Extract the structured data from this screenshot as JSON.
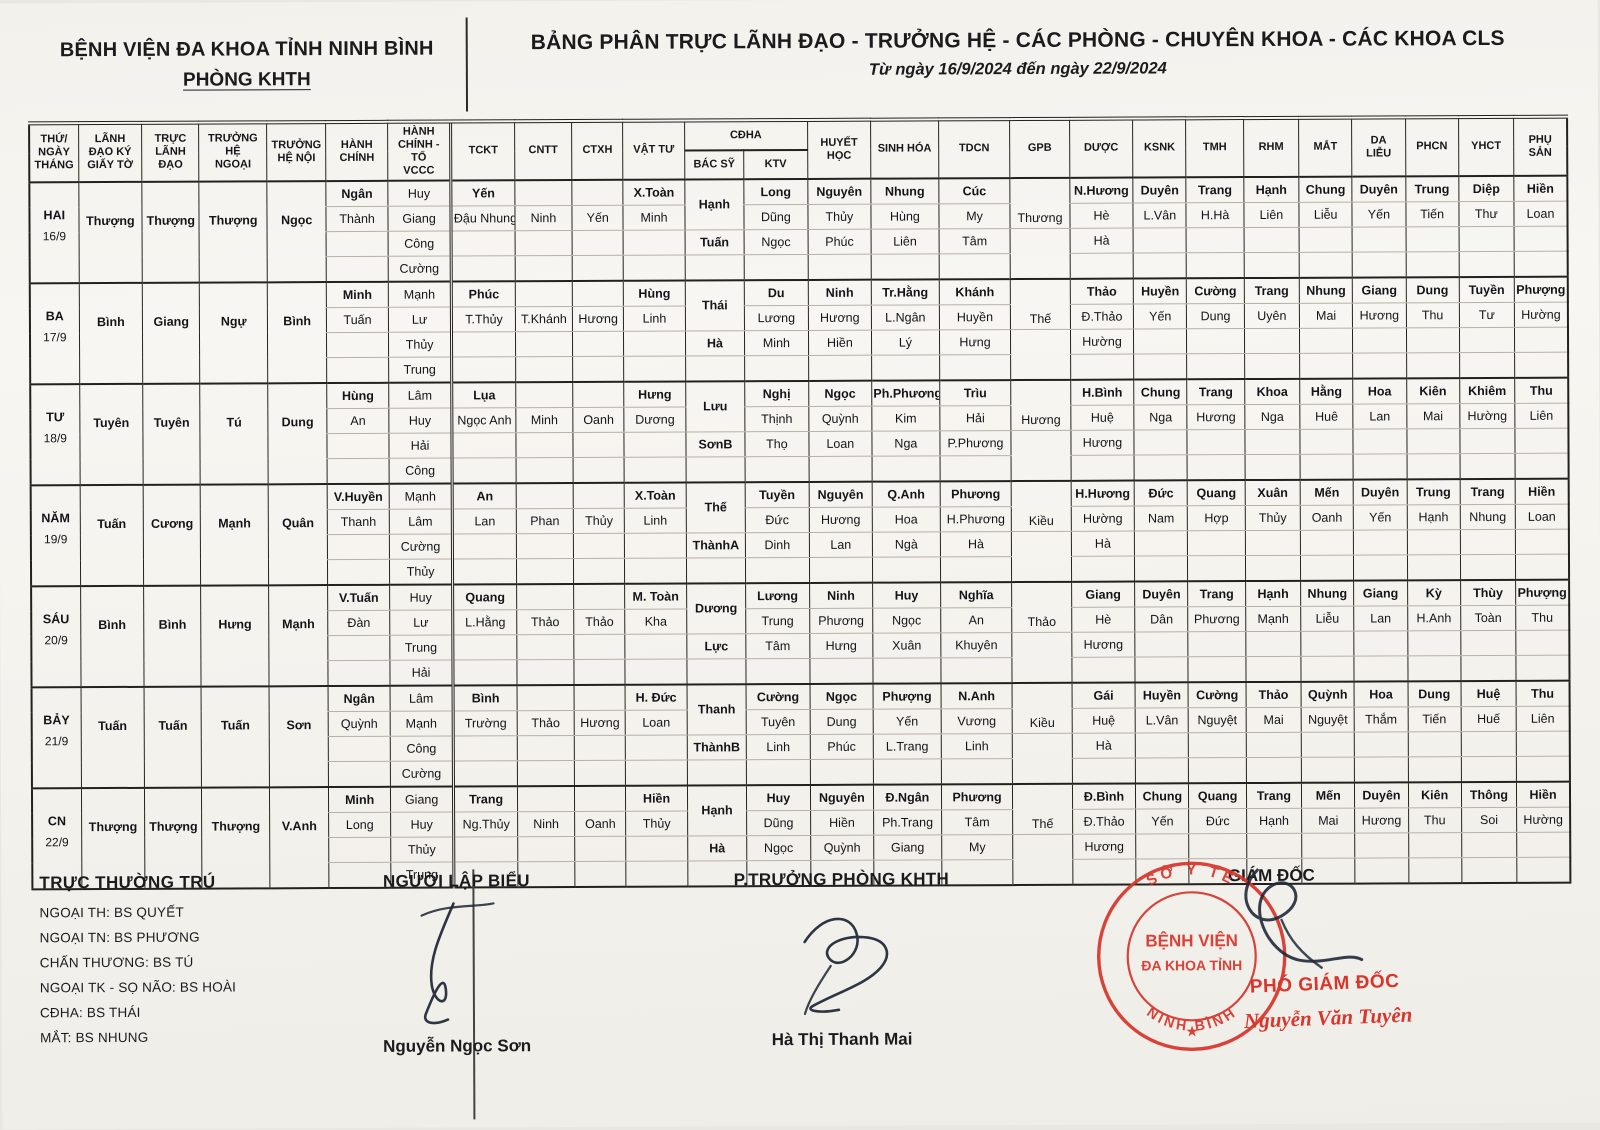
{
  "header": {
    "org_line1": "BỆNH VIỆN ĐA KHOA TỈNH NINH BÌNH",
    "org_line2": "PHÒNG KHTH",
    "title": "BẢNG PHÂN TRỰC LÃNH ĐẠO - TRƯỞNG HỆ - CÁC PHÒNG - CHUYÊN KHOA - CÁC KHOA CLS",
    "subtitle": "Từ ngày 16/9/2024 đến ngày 22/9/2024"
  },
  "table": {
    "columns": [
      {
        "key": "day",
        "label": "THỨ/\nNGÀY\nTHÁNG",
        "type": "day"
      },
      {
        "key": "ky",
        "label": "LÃNH\nĐẠO KÝ\nGIẤY TỜ",
        "type": "single"
      },
      {
        "key": "truc",
        "label": "TRỰC\nLÃNH\nĐẠO",
        "type": "single"
      },
      {
        "key": "ngoai",
        "label": "TRƯỞNG\nHỆ\nNGOẠI",
        "type": "single"
      },
      {
        "key": "noi",
        "label": "TRƯỞNG\nHỆ NỘI",
        "type": "single"
      },
      {
        "key": "hc",
        "label": "HÀNH\nCHÍNH",
        "type": "two"
      },
      {
        "key": "vccc",
        "label": "HÀNH\nCHÍNH -\nTỔ\nVCCC",
        "type": "four"
      },
      {
        "key": "tckt",
        "label": "TCKT",
        "type": "two"
      },
      {
        "key": "cntt",
        "label": "CNTT",
        "type": "mid"
      },
      {
        "key": "ctxh",
        "label": "CTXH",
        "type": "mid"
      },
      {
        "key": "vattu",
        "label": "VẬT TƯ",
        "type": "two"
      },
      {
        "key": "cdha_bs",
        "label": "BÁC SỸ",
        "type": "bs",
        "group": "CĐHA"
      },
      {
        "key": "cdha_ktv",
        "label": "KTV",
        "type": "three",
        "group": "CĐHA"
      },
      {
        "key": "huyet",
        "label": "HUYẾT\nHỌC",
        "type": "three"
      },
      {
        "key": "sinhhoa",
        "label": "SINH HÓA",
        "type": "three"
      },
      {
        "key": "tdcn",
        "label": "TDCN",
        "type": "three"
      },
      {
        "key": "gpb",
        "label": "GPB",
        "type": "gpb"
      },
      {
        "key": "duoc",
        "label": "DƯỢC",
        "type": "three"
      },
      {
        "key": "ksnk",
        "label": "KSNK",
        "type": "two"
      },
      {
        "key": "tmh",
        "label": "TMH",
        "type": "two"
      },
      {
        "key": "rhm",
        "label": "RHM",
        "type": "two"
      },
      {
        "key": "mat",
        "label": "MẮT",
        "type": "two"
      },
      {
        "key": "dalieu",
        "label": "DA\nLIỄU",
        "type": "two"
      },
      {
        "key": "phcn",
        "label": "PHCN",
        "type": "two"
      },
      {
        "key": "yhct",
        "label": "YHCT",
        "type": "two"
      },
      {
        "key": "phusan",
        "label": "PHỤ\nSẢN",
        "type": "two"
      }
    ],
    "days": [
      {
        "day": "HAI",
        "date": "16/9",
        "ky": "Thượng",
        "truc": "Thượng",
        "ngoai": "Thượng",
        "noi": "Ngọc",
        "hc": [
          "Ngân",
          "Thành"
        ],
        "vccc": [
          "Huy",
          "Giang",
          "Công",
          "Cường"
        ],
        "tckt": [
          "Yến",
          "Đậu Nhung"
        ],
        "cntt": "Ninh",
        "ctxh": "Yến",
        "vattu": [
          "X.Toàn",
          "Minh"
        ],
        "cdha_bs": [
          "Hạnh",
          "Tuấn"
        ],
        "cdha_ktv": [
          "Long",
          "Dũng",
          "Ngọc"
        ],
        "huyet": [
          "Nguyên",
          "Thủy",
          "Phúc"
        ],
        "sinhhoa": [
          "Nhung",
          "Hùng",
          "Liên"
        ],
        "tdcn": [
          "Cúc",
          "My",
          "Tâm"
        ],
        "gpb": "Thương",
        "duoc": [
          "N.Hương",
          "Hè",
          "Hà"
        ],
        "ksnk": [
          "Duyên",
          "L.Vân"
        ],
        "tmh": [
          "Trang",
          "H.Hà"
        ],
        "rhm": [
          "Hạnh",
          "Liên"
        ],
        "mat": [
          "Chung",
          "Liễu"
        ],
        "dalieu": [
          "Duyên",
          "Yến"
        ],
        "phcn": [
          "Trung",
          "Tiến"
        ],
        "yhct": [
          "Diệp",
          "Thư"
        ],
        "phusan": [
          "Hiền",
          "Loan"
        ]
      },
      {
        "day": "BA",
        "date": "17/9",
        "ky": "Bình",
        "truc": "Giang",
        "ngoai": "Ngự",
        "noi": "Bình",
        "hc": [
          "Minh",
          "Tuấn"
        ],
        "vccc": [
          "Mạnh",
          "Lư",
          "Thủy",
          "Trung"
        ],
        "tckt": [
          "Phúc",
          "T.Thủy"
        ],
        "cntt": "T.Khánh",
        "ctxh": "Hương",
        "vattu": [
          "Hùng",
          "Linh"
        ],
        "cdha_bs": [
          "Thái",
          "Hà"
        ],
        "cdha_ktv": [
          "Du",
          "Lương",
          "Minh"
        ],
        "huyet": [
          "Ninh",
          "Hương",
          "Hiền"
        ],
        "sinhhoa": [
          "Tr.Hằng",
          "L.Ngân",
          "Lý"
        ],
        "tdcn": [
          "Khánh",
          "Huyền",
          "Hưng"
        ],
        "gpb": "Thế",
        "duoc": [
          "Thảo",
          "Đ.Thảo",
          "Hường"
        ],
        "ksnk": [
          "Huyền",
          "Yến"
        ],
        "tmh": [
          "Cường",
          "Dung"
        ],
        "rhm": [
          "Trang",
          "Uyên"
        ],
        "mat": [
          "Nhung",
          "Mai"
        ],
        "dalieu": [
          "Giang",
          "Hương"
        ],
        "phcn": [
          "Dung",
          "Thu"
        ],
        "yhct": [
          "Tuyền",
          "Tư"
        ],
        "phusan": [
          "Phượng",
          "Hường"
        ]
      },
      {
        "day": "TƯ",
        "date": "18/9",
        "ky": "Tuyên",
        "truc": "Tuyên",
        "ngoai": "Tú",
        "noi": "Dung",
        "hc": [
          "Hùng",
          "An"
        ],
        "vccc": [
          "Lâm",
          "Huy",
          "Hải",
          "Công"
        ],
        "tckt": [
          "Lụa",
          "Ngọc Anh"
        ],
        "cntt": "Minh",
        "ctxh": "Oanh",
        "vattu": [
          "Hưng",
          "Dương"
        ],
        "cdha_bs": [
          "Lưu",
          "SơnB"
        ],
        "cdha_ktv": [
          "Nghị",
          "Thịnh",
          "Thọ"
        ],
        "huyet": [
          "Ngọc",
          "Quỳnh",
          "Loan"
        ],
        "sinhhoa": [
          "Ph.Phương",
          "Kim",
          "Nga"
        ],
        "tdcn": [
          "Trìu",
          "Hải",
          "P.Phương"
        ],
        "gpb": "Hương",
        "duoc": [
          "H.Bình",
          "Huệ",
          "Hương"
        ],
        "ksnk": [
          "Chung",
          "Nga"
        ],
        "tmh": [
          "Trang",
          "Hương"
        ],
        "rhm": [
          "Khoa",
          "Nga"
        ],
        "mat": [
          "Hằng",
          "Huê"
        ],
        "dalieu": [
          "Hoa",
          "Lan"
        ],
        "phcn": [
          "Kiên",
          "Mai"
        ],
        "yhct": [
          "Khiêm",
          "Hường"
        ],
        "phusan": [
          "Thu",
          "Liên"
        ]
      },
      {
        "day": "NĂM",
        "date": "19/9",
        "ky": "Tuấn",
        "truc": "Cương",
        "ngoai": "Mạnh",
        "noi": "Quân",
        "hc": [
          "V.Huyền",
          "Thanh"
        ],
        "vccc": [
          "Mạnh",
          "Lâm",
          "Cường",
          "Thủy"
        ],
        "tckt": [
          "An",
          "Lan"
        ],
        "cntt": "Phan",
        "ctxh": "Thủy",
        "vattu": [
          "X.Toàn",
          "Linh"
        ],
        "cdha_bs": [
          "Thế",
          "ThànhA"
        ],
        "cdha_ktv": [
          "Tuyền",
          "Đức",
          "Dinh"
        ],
        "huyet": [
          "Nguyên",
          "Hương",
          "Lan"
        ],
        "sinhhoa": [
          "Q.Anh",
          "Hoa",
          "Ngà"
        ],
        "tdcn": [
          "Phương",
          "H.Phương",
          "Hà"
        ],
        "gpb": "Kiều",
        "duoc": [
          "H.Hương",
          "Hường",
          "Hà"
        ],
        "ksnk": [
          "Đức",
          "Nam"
        ],
        "tmh": [
          "Quang",
          "Hợp"
        ],
        "rhm": [
          "Xuân",
          "Thủy"
        ],
        "mat": [
          "Mến",
          "Oanh"
        ],
        "dalieu": [
          "Duyên",
          "Yến"
        ],
        "phcn": [
          "Trung",
          "Hạnh"
        ],
        "yhct": [
          "Trang",
          "Nhung"
        ],
        "phusan": [
          "Hiền",
          "Loan"
        ]
      },
      {
        "day": "SÁU",
        "date": "20/9",
        "ky": "Bình",
        "truc": "Bình",
        "ngoai": "Hưng",
        "noi": "Mạnh",
        "hc": [
          "V.Tuấn",
          "Đàn"
        ],
        "vccc": [
          "Huy",
          "Lư",
          "Trung",
          "Hải"
        ],
        "tckt": [
          "Quang",
          "L.Hằng"
        ],
        "cntt": "Thảo",
        "ctxh": "Thảo",
        "vattu": [
          "M. Toàn",
          "Kha"
        ],
        "cdha_bs": [
          "Dương",
          "Lực"
        ],
        "cdha_ktv": [
          "Lương",
          "Trung",
          "Tâm"
        ],
        "huyet": [
          "Ninh",
          "Phương",
          "Hưng"
        ],
        "sinhhoa": [
          "Huy",
          "Ngọc",
          "Xuân"
        ],
        "tdcn": [
          "Nghĩa",
          "An",
          "Khuyên"
        ],
        "gpb": "Thảo",
        "duoc": [
          "Giang",
          "Hè",
          "Hương"
        ],
        "ksnk": [
          "Duyên",
          "Dân"
        ],
        "tmh": [
          "Trang",
          "Phương"
        ],
        "rhm": [
          "Hạnh",
          "Mạnh"
        ],
        "mat": [
          "Nhung",
          "Liễu"
        ],
        "dalieu": [
          "Giang",
          "Lan"
        ],
        "phcn": [
          "Kỳ",
          "H.Anh"
        ],
        "yhct": [
          "Thùy",
          "Toàn"
        ],
        "phusan": [
          "Phượng",
          "Thu"
        ]
      },
      {
        "day": "BẢY",
        "date": "21/9",
        "ky": "Tuấn",
        "truc": "Tuấn",
        "ngoai": "Tuấn",
        "noi": "Sơn",
        "hc": [
          "Ngân",
          "Quỳnh"
        ],
        "vccc": [
          "Lâm",
          "Mạnh",
          "Công",
          "Cường"
        ],
        "tckt": [
          "Bình",
          "Trường"
        ],
        "cntt": "Thảo",
        "ctxh": "Hương",
        "vattu": [
          "H. Đức",
          "Loan"
        ],
        "cdha_bs": [
          "Thanh",
          "ThànhB"
        ],
        "cdha_ktv": [
          "Cường",
          "Tuyên",
          "Linh"
        ],
        "huyet": [
          "Ngọc",
          "Dung",
          "Phúc"
        ],
        "sinhhoa": [
          "Phượng",
          "Yến",
          "L.Trang"
        ],
        "tdcn": [
          "N.Anh",
          "Vương",
          "Linh"
        ],
        "gpb": "Kiều",
        "duoc": [
          "Gái",
          "Huệ",
          "Hà"
        ],
        "ksnk": [
          "Huyền",
          "L.Vân"
        ],
        "tmh": [
          "Cường",
          "Nguyệt"
        ],
        "rhm": [
          "Thảo",
          "Mai"
        ],
        "mat": [
          "Quỳnh",
          "Nguyệt"
        ],
        "dalieu": [
          "Hoa",
          "Thắm"
        ],
        "phcn": [
          "Dung",
          "Tiến"
        ],
        "yhct": [
          "Huệ",
          "Huế"
        ],
        "phusan": [
          "Thu",
          "Liên"
        ]
      },
      {
        "day": "CN",
        "date": "22/9",
        "ky": "Thượng",
        "truc": "Thượng",
        "ngoai": "Thượng",
        "noi": "V.Anh",
        "hc": [
          "Minh",
          "Long"
        ],
        "vccc": [
          "Giang",
          "Huy",
          "Thủy",
          "Trung"
        ],
        "tckt": [
          "Trang",
          "Ng.Thủy"
        ],
        "cntt": "Ninh",
        "ctxh": "Oanh",
        "vattu": [
          "Hiền",
          "Thủy"
        ],
        "cdha_bs": [
          "Hạnh",
          "Hà"
        ],
        "cdha_ktv": [
          "Huy",
          "Dũng",
          "Ngọc"
        ],
        "huyet": [
          "Nguyên",
          "Hiền",
          "Quỳnh"
        ],
        "sinhhoa": [
          "Đ.Ngân",
          "Ph.Trang",
          "Giang"
        ],
        "tdcn": [
          "Phương",
          "Tâm",
          "My"
        ],
        "gpb": "Thế",
        "duoc": [
          "Đ.Bình",
          "Đ.Thảo",
          "Hương"
        ],
        "ksnk": [
          "Chung",
          "Yến"
        ],
        "tmh": [
          "Quang",
          "Đức"
        ],
        "rhm": [
          "Trang",
          "Hạnh"
        ],
        "mat": [
          "Mến",
          "Mai"
        ],
        "dalieu": [
          "Duyên",
          "Hương"
        ],
        "phcn": [
          "Kiên",
          "Thu"
        ],
        "yhct": [
          "Thông",
          "Soi"
        ],
        "phusan": [
          "Hiền",
          "Hường"
        ]
      }
    ]
  },
  "footer": {
    "resident_title": "TRỰC THƯỜNG TRÚ",
    "resident_lines": [
      "NGOẠI TH: BS QUYẾT",
      "NGOẠI TN: BS PHƯƠNG",
      "CHẤN THƯƠNG: BS TÚ",
      "NGOẠI TK - SỌ NÃO: BS HOÀI",
      "CĐHA: BS THÁI",
      "MẮT: BS NHUNG"
    ],
    "preparer_title": "NGƯỜI LẬP BIỂU",
    "preparer_name": "Nguyễn Ngọc Sơn",
    "deputy_head_title": "P.TRƯỞNG PHÒNG KHTH",
    "deputy_head_name": "Hà Thị Thanh Mai",
    "director_title": "GIÁM ĐỐC",
    "deputy_director_title": "PHÓ GIÁM ĐỐC",
    "deputy_director_name": "Nguyễn Văn Tuyên",
    "stamp": {
      "arc_top": "SỞ Y TẾ",
      "arc_bottom": "NINH BÌNH",
      "line1": "BỆNH VIỆN",
      "line2": "ĐA KHOA TỈNH",
      "color": "#d8352c"
    }
  }
}
